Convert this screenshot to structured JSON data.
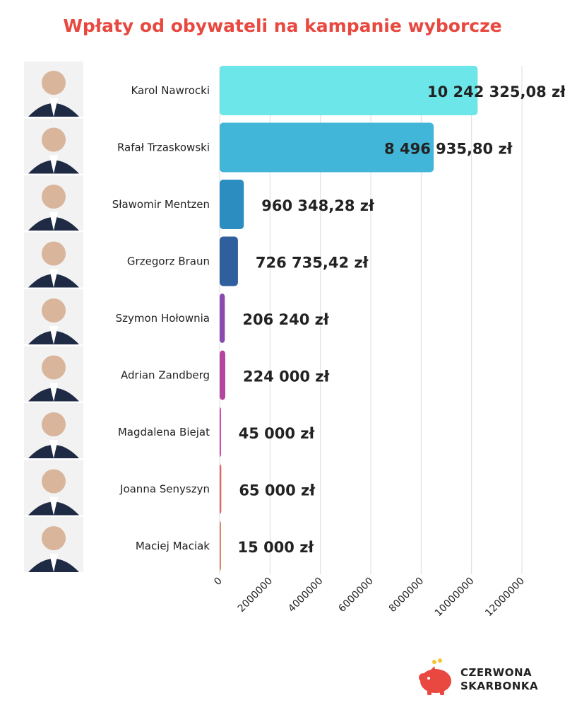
{
  "chart_data": {
    "type": "bar",
    "orientation": "horizontal",
    "title": "Wpłaty od obywateli na kampanie wyborcze",
    "xlabel": "",
    "ylabel": "",
    "xlim": [
      0,
      12000000
    ],
    "x_ticks": [
      "0",
      "2000000",
      "4000000",
      "6000000",
      "8000000",
      "10000000",
      "12000000"
    ],
    "grid": true,
    "categories": [
      "Karol Nawrocki",
      "Rafał Trzaskowski",
      "Sławomir Mentzen",
      "Grzegorz Braun",
      "Szymon Hołownia",
      "Adrian Zandberg",
      "Magdalena Biejat",
      "Joanna Senyszyn",
      "Maciej Maciak"
    ],
    "values": [
      10242325.08,
      8496935.8,
      960348.28,
      726735.42,
      206240,
      224000,
      45000,
      65000,
      15000
    ],
    "value_labels": [
      "10 242 325,08 zł",
      "8 496 935,80 zł",
      "960 348,28 zł",
      "726 735,42 zł",
      "206 240 zł",
      "224 000 zł",
      "45 000 zł",
      "65 000 zł",
      "15 000 zł"
    ],
    "colors": [
      "#6de6ea",
      "#42b6d8",
      "#2b8dc0",
      "#2f5f9c",
      "#8a4bb0",
      "#b3469e",
      "#c94bb5",
      "#e0645f",
      "#d98a6a"
    ]
  },
  "branding": {
    "line1": "CZERWONA",
    "line2": "SKARBONKA",
    "accent": "#e8483f"
  }
}
